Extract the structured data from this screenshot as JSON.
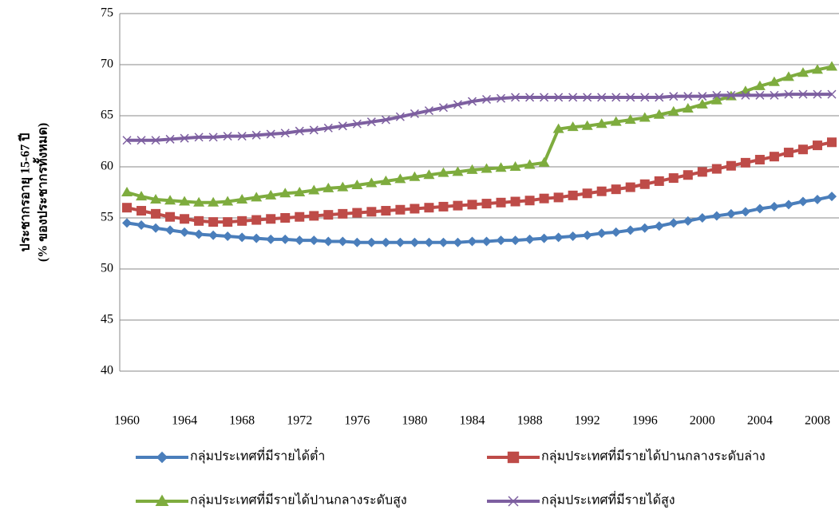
{
  "chart_data": {
    "type": "line",
    "ylabel": [
      "ประชากรอายุ 15-67 ปี",
      "(% ของประชากรทั้งหมด)"
    ],
    "x": [
      1960,
      1961,
      1962,
      1963,
      1964,
      1965,
      1966,
      1967,
      1968,
      1969,
      1970,
      1971,
      1972,
      1973,
      1974,
      1975,
      1976,
      1977,
      1978,
      1979,
      1980,
      1981,
      1982,
      1983,
      1984,
      1985,
      1986,
      1987,
      1988,
      1989,
      1990,
      1991,
      1992,
      1993,
      1994,
      1995,
      1996,
      1997,
      1998,
      1999,
      2000,
      2001,
      2002,
      2003,
      2004,
      2005,
      2006,
      2007,
      2008,
      2009
    ],
    "xlim": [
      1959.5,
      2009.5
    ],
    "xticks": [
      1960,
      1964,
      1968,
      1972,
      1976,
      1980,
      1984,
      1988,
      1992,
      1996,
      2000,
      2004,
      2008
    ],
    "ylim": [
      40,
      75
    ],
    "yticks": [
      40,
      45,
      50,
      55,
      60,
      65,
      70,
      75
    ],
    "grid": true,
    "legend": "bottom",
    "series": [
      {
        "name": "กลุ่มประเทศที่มีรายได้ต่ำ",
        "color": "#4a7ebb",
        "marker": "diamond",
        "values": [
          54.5,
          54.3,
          54.0,
          53.8,
          53.6,
          53.4,
          53.3,
          53.2,
          53.1,
          53.0,
          52.9,
          52.9,
          52.8,
          52.8,
          52.7,
          52.7,
          52.6,
          52.6,
          52.6,
          52.6,
          52.6,
          52.6,
          52.6,
          52.6,
          52.7,
          52.7,
          52.8,
          52.8,
          52.9,
          53.0,
          53.1,
          53.2,
          53.3,
          53.5,
          53.6,
          53.8,
          54.0,
          54.2,
          54.5,
          54.7,
          55.0,
          55.2,
          55.4,
          55.6,
          55.9,
          56.1,
          56.3,
          56.6,
          56.8,
          57.1
        ]
      },
      {
        "name": "กลุ่มประเทศที่มีรายได้ปานกลางระดับล่าง",
        "color": "#be4b48",
        "marker": "square",
        "values": [
          56.0,
          55.7,
          55.4,
          55.1,
          54.9,
          54.7,
          54.6,
          54.6,
          54.7,
          54.8,
          54.9,
          55.0,
          55.1,
          55.2,
          55.3,
          55.4,
          55.5,
          55.6,
          55.7,
          55.8,
          55.9,
          56.0,
          56.1,
          56.2,
          56.3,
          56.4,
          56.5,
          56.6,
          56.7,
          56.9,
          57.0,
          57.2,
          57.4,
          57.6,
          57.8,
          58.0,
          58.3,
          58.6,
          58.9,
          59.2,
          59.5,
          59.8,
          60.1,
          60.4,
          60.7,
          61.0,
          61.4,
          61.7,
          62.1,
          62.4
        ]
      },
      {
        "name": "กลุ่มประเทศที่มีรายได้ปานกลางระดับสูง",
        "color": "#7eac3e",
        "marker": "triangle",
        "values": [
          57.5,
          57.1,
          56.8,
          56.7,
          56.6,
          56.5,
          56.5,
          56.6,
          56.8,
          57.0,
          57.2,
          57.4,
          57.5,
          57.7,
          57.9,
          58.0,
          58.2,
          58.4,
          58.6,
          58.8,
          59.0,
          59.2,
          59.4,
          59.5,
          59.7,
          59.8,
          59.9,
          60.0,
          60.2,
          60.4,
          63.7,
          63.9,
          64.0,
          64.2,
          64.4,
          64.6,
          64.8,
          65.1,
          65.4,
          65.7,
          66.1,
          66.5,
          66.9,
          67.4,
          67.9,
          68.3,
          68.8,
          69.2,
          69.5,
          69.8
        ]
      },
      {
        "name": "กลุ่มประเทศที่มีรายได้สูง",
        "color": "#7d5fa0",
        "marker": "x",
        "values": [
          62.6,
          62.6,
          62.6,
          62.7,
          62.8,
          62.9,
          62.9,
          63.0,
          63.0,
          63.1,
          63.2,
          63.3,
          63.5,
          63.6,
          63.8,
          64.0,
          64.2,
          64.4,
          64.6,
          64.9,
          65.2,
          65.5,
          65.8,
          66.1,
          66.4,
          66.6,
          66.7,
          66.8,
          66.8,
          66.8,
          66.8,
          66.8,
          66.8,
          66.8,
          66.8,
          66.8,
          66.8,
          66.8,
          66.9,
          66.9,
          66.9,
          67.0,
          67.0,
          67.0,
          67.0,
          67.0,
          67.1,
          67.1,
          67.1,
          67.1
        ]
      }
    ]
  }
}
